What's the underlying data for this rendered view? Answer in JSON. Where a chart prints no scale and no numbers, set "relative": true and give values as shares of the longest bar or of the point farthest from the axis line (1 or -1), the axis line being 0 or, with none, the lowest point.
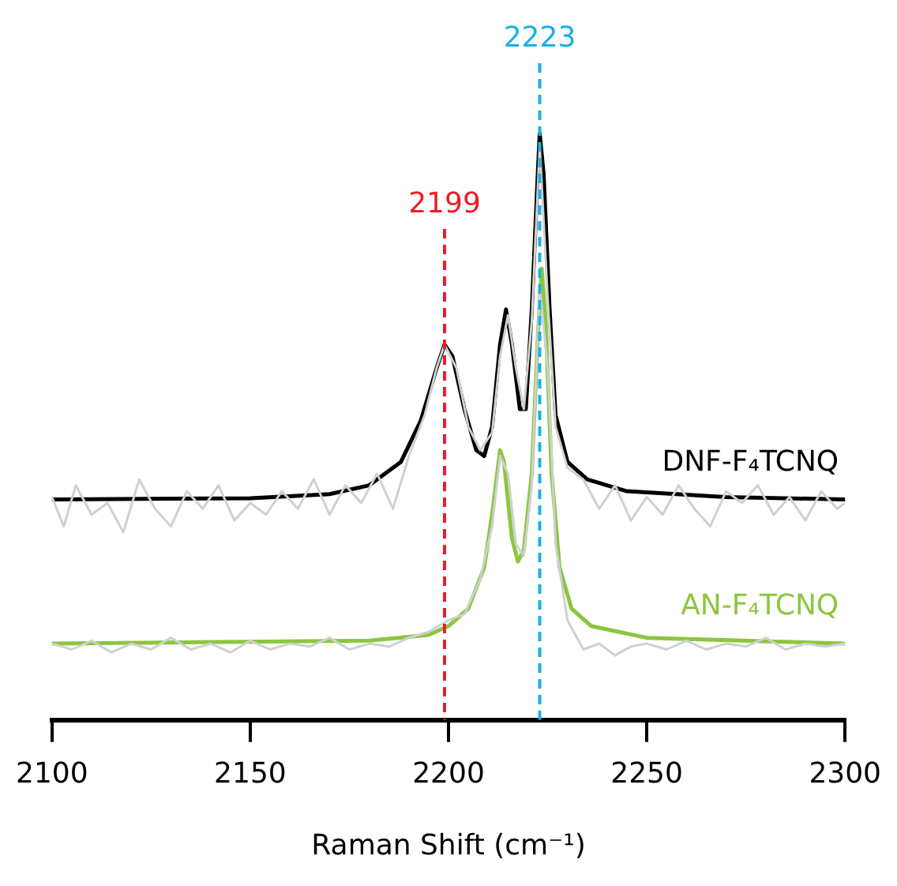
{
  "chart_data": {
    "type": "line",
    "relative": true,
    "xlabel": "Raman Shift (cm⁻¹)",
    "xlim": [
      2100,
      2300
    ],
    "xticks": [
      2100,
      2150,
      2200,
      2250,
      2300
    ],
    "tick_labels": "x",
    "grid": false,
    "legend": false,
    "marker": "none",
    "line_style": "solid",
    "ref_lines": [
      {
        "axis": "x",
        "value": 2199,
        "label": "2199",
        "color": "#ee1c25",
        "line_style": "dashed"
      },
      {
        "axis": "x",
        "value": 2223,
        "label": "2223",
        "color": "#1ab0e8",
        "line_style": "dashed"
      }
    ],
    "series": [
      {
        "color": "#d0d0d0",
        "x": [
          2100,
          2103,
          2106,
          2110,
          2114,
          2118,
          2122,
          2126,
          2130,
          2134,
          2138,
          2142,
          2146,
          2150,
          2154,
          2158,
          2162,
          2166,
          2170,
          2174,
          2178,
          2182,
          2186,
          2190,
          2194,
          2197,
          2199,
          2202,
          2205,
          2208,
          2211,
          2213,
          2215,
          2217,
          2219,
          2221,
          2223,
          2225,
          2227,
          2230,
          2234,
          2238,
          2242,
          2246,
          2250,
          2254,
          2258,
          2262,
          2266,
          2270,
          2274,
          2278,
          2282,
          2286,
          2290,
          2294,
          2298,
          2300
        ],
        "values": [
          0.38,
          0.33,
          0.4,
          0.35,
          0.37,
          0.32,
          0.41,
          0.36,
          0.33,
          0.39,
          0.36,
          0.4,
          0.34,
          0.37,
          0.35,
          0.39,
          0.36,
          0.41,
          0.35,
          0.4,
          0.37,
          0.42,
          0.36,
          0.45,
          0.52,
          0.6,
          0.64,
          0.6,
          0.5,
          0.46,
          0.49,
          0.62,
          0.69,
          0.6,
          0.53,
          0.68,
          0.98,
          0.72,
          0.5,
          0.43,
          0.41,
          0.36,
          0.4,
          0.34,
          0.38,
          0.35,
          0.4,
          0.36,
          0.33,
          0.39,
          0.37,
          0.4,
          0.35,
          0.38,
          0.34,
          0.39,
          0.36,
          0.37
        ]
      },
      {
        "color": "#d0d0d0",
        "x": [
          2100,
          2105,
          2110,
          2115,
          2120,
          2125,
          2130,
          2135,
          2140,
          2145,
          2150,
          2155,
          2160,
          2165,
          2170,
          2175,
          2180,
          2185,
          2190,
          2195,
          2200,
          2204,
          2208,
          2211,
          2213,
          2215,
          2217,
          2219,
          2221,
          2223,
          2225,
          2227,
          2230,
          2234,
          2238,
          2242,
          2246,
          2250,
          2255,
          2260,
          2265,
          2270,
          2275,
          2280,
          2285,
          2290,
          2295,
          2300
        ],
        "values": [
          0.13,
          0.12,
          0.135,
          0.115,
          0.13,
          0.12,
          0.14,
          0.12,
          0.13,
          0.115,
          0.135,
          0.12,
          0.13,
          0.125,
          0.14,
          0.12,
          0.13,
          0.125,
          0.14,
          0.15,
          0.17,
          0.18,
          0.24,
          0.33,
          0.45,
          0.42,
          0.3,
          0.28,
          0.4,
          0.74,
          0.6,
          0.3,
          0.17,
          0.12,
          0.13,
          0.11,
          0.125,
          0.13,
          0.12,
          0.135,
          0.12,
          0.13,
          0.125,
          0.14,
          0.12,
          0.13,
          0.125,
          0.13
        ]
      },
      {
        "name": "DNF-F₄TCNQ",
        "color": "#000000",
        "x": [
          2100,
          2150,
          2170,
          2180,
          2188,
          2193,
          2197,
          2199,
          2201,
          2204,
          2207,
          2209,
          2211,
          2213,
          2214.5,
          2216,
          2218,
          2219.5,
          2221,
          2222.5,
          2223,
          2224,
          2225.5,
          2227,
          2230,
          2235,
          2245,
          2270,
          2300
        ],
        "values": [
          0.376,
          0.378,
          0.385,
          0.4,
          0.44,
          0.51,
          0.6,
          0.64,
          0.62,
          0.53,
          0.46,
          0.45,
          0.5,
          0.64,
          0.7,
          0.64,
          0.53,
          0.53,
          0.7,
          0.93,
          1,
          0.93,
          0.7,
          0.52,
          0.44,
          0.41,
          0.39,
          0.38,
          0.376
        ]
      },
      {
        "name": "AN-F₄TCNQ",
        "color": "#8cc63f",
        "x": [
          2100,
          2180,
          2195,
          2200,
          2205,
          2209,
          2211,
          2213,
          2214,
          2216,
          2217.5,
          2219,
          2221,
          2222.5,
          2223.5,
          2224.5,
          2226,
          2228,
          2231,
          2236,
          2250,
          2300
        ],
        "values": [
          0.13,
          0.135,
          0.145,
          0.16,
          0.19,
          0.26,
          0.35,
          0.46,
          0.44,
          0.31,
          0.27,
          0.29,
          0.42,
          0.65,
          0.77,
          0.68,
          0.42,
          0.26,
          0.19,
          0.16,
          0.14,
          0.13
        ]
      }
    ]
  }
}
